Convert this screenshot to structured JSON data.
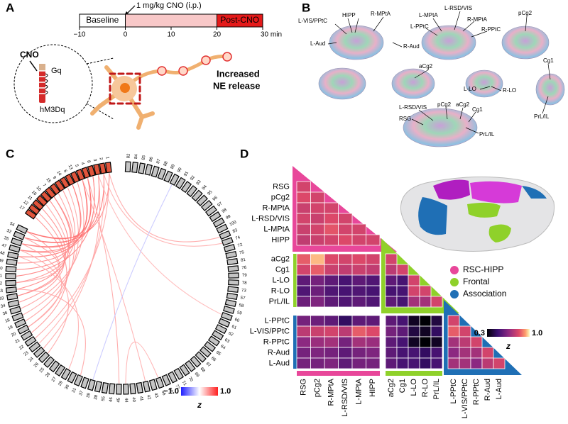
{
  "panel_a": {
    "label": "A",
    "dose": "1 mg/kg CNO (i.p.)",
    "phases": [
      "Baseline",
      "Post-CNO"
    ],
    "time_ticks": [
      {
        "value": -10,
        "label": "−10"
      },
      0,
      10,
      20,
      {
        "value": 30,
        "label": "30 min"
      }
    ],
    "drug": "CNO",
    "protein": "Gq",
    "receptor": "hM3Dq",
    "effect": [
      "Increased",
      "NE release"
    ]
  },
  "panel_b": {
    "label": "B",
    "labels": [
      "L-VIS/PPtC",
      "HIPP",
      "R-MPtA",
      "L-Aud",
      "R-Aud",
      "L-MPtA",
      "L-RSD/VIS",
      "R-MPtA",
      "L-PPtC",
      "R-PPtC",
      "pCg2",
      "aCg2",
      "Cg1",
      "L-LO",
      "R-LO",
      "PrL/IL",
      "L-RSD/VIS",
      "pCg2",
      "aCg2",
      "Cg1",
      "RSG",
      "PrL/IL"
    ]
  },
  "panel_c": {
    "label": "C",
    "red_nodes": [
      17,
      12,
      11,
      16,
      10,
      7,
      15,
      9,
      14,
      6,
      13,
      5,
      4,
      8,
      3,
      2,
      1
    ],
    "gray_nodes": [
      82,
      84,
      85,
      86,
      87,
      88,
      89,
      90,
      91,
      92,
      93,
      94,
      95,
      96,
      97,
      98,
      99,
      100,
      83,
      74,
      72,
      75,
      81,
      76,
      79,
      78,
      73,
      57,
      58,
      59,
      60,
      61,
      62,
      63,
      64,
      65,
      66,
      67,
      68,
      69,
      70,
      71,
      77,
      80,
      56,
      43,
      42,
      41,
      40,
      44,
      45,
      46,
      55,
      38,
      39,
      37,
      31,
      30,
      29,
      27,
      28,
      25,
      26,
      24,
      23,
      22,
      21,
      20,
      19,
      18,
      36,
      34,
      33,
      53,
      52,
      51,
      50,
      49,
      48,
      47,
      35,
      32,
      54
    ],
    "edges": [
      {
        "source": 1,
        "target": 54,
        "z": 0.7
      },
      {
        "source": 2,
        "target": 32,
        "z": 0.8
      },
      {
        "source": 3,
        "target": 35,
        "z": 0.75
      },
      {
        "source": 4,
        "target": 47,
        "z": 0.7
      },
      {
        "source": 5,
        "target": 48,
        "z": 0.8
      },
      {
        "source": 6,
        "target": 49,
        "z": 0.65
      },
      {
        "source": 7,
        "target": 50,
        "z": 0.7
      },
      {
        "source": 8,
        "target": 51,
        "z": 0.75
      },
      {
        "source": 9,
        "target": 52,
        "z": 0.6
      },
      {
        "source": 10,
        "target": 53,
        "z": 0.7
      },
      {
        "source": 11,
        "target": 33,
        "z": 0.65
      },
      {
        "source": 12,
        "target": 34,
        "z": 0.6
      },
      {
        "source": 13,
        "target": 36,
        "z": 0.55
      },
      {
        "source": 14,
        "target": 18,
        "z": 0.5
      },
      {
        "source": 15,
        "target": 19,
        "z": 0.55
      },
      {
        "source": 16,
        "target": 20,
        "z": 0.5
      },
      {
        "source": 17,
        "target": 21,
        "z": 0.6
      },
      {
        "source": 1,
        "target": 22,
        "z": 0.5
      },
      {
        "source": 2,
        "target": 23,
        "z": 0.45
      },
      {
        "source": 3,
        "target": 24,
        "z": 0.5
      },
      {
        "source": 4,
        "target": 54,
        "z": 0.8
      },
      {
        "source": 5,
        "target": 32,
        "z": 0.75
      },
      {
        "source": 6,
        "target": 35,
        "z": 0.7
      },
      {
        "source": 7,
        "target": 47,
        "z": 0.65
      },
      {
        "source": 8,
        "target": 48,
        "z": 0.6
      },
      {
        "source": 1,
        "target": 83,
        "z": 0.5
      },
      {
        "source": 2,
        "target": 74,
        "z": 0.45
      },
      {
        "source": 3,
        "target": 60,
        "z": 0.4
      },
      {
        "source": 4,
        "target": 45,
        "z": 0.5
      },
      {
        "source": 5,
        "target": 42,
        "z": 0.45
      },
      {
        "source": 54,
        "target": 33,
        "z": 0.6
      },
      {
        "source": 32,
        "target": 52,
        "z": 0.55
      },
      {
        "source": 35,
        "target": 20,
        "z": 0.5
      },
      {
        "source": 47,
        "target": 26,
        "z": 0.5
      },
      {
        "source": 48,
        "target": 29,
        "z": 0.45
      },
      {
        "source": 53,
        "target": 31,
        "z": 0.5
      },
      {
        "source": 56,
        "target": 44,
        "z": 0.45
      },
      {
        "source": 90,
        "target": 39,
        "z": -0.4
      }
    ],
    "colorbar": {
      "ticks": [
        {
          "value": -1,
          "label": "−1.0"
        },
        {
          "value": 1,
          "label": "1.0"
        }
      ],
      "title": "z"
    }
  },
  "panel_d": {
    "label": "D",
    "regions": [
      [
        "RSG",
        "pCg2",
        "R-MPtA",
        "L-RSD/VIS",
        "L-MPtA",
        "HIPP"
      ],
      [
        "aCg2",
        "Cg1",
        "L-LO",
        "R-LO",
        "PrL/IL"
      ],
      [
        "L-PPtC",
        "L-VIS/PPtC",
        "R-PPtC",
        "R-Aud",
        "L-Aud"
      ]
    ],
    "legend": [
      {
        "name": "RSC-HIPP",
        "color": "#e8479a"
      },
      {
        "name": "Frontal",
        "color": "#8fd12a"
      },
      {
        "name": "Association",
        "color": "#1f6fb5"
      }
    ],
    "values": [
      [
        0.8
      ],
      [
        0.82,
        0.8
      ],
      [
        0.78,
        0.8,
        0.8
      ],
      [
        0.8,
        0.78,
        0.82,
        0.8
      ],
      [
        0.78,
        0.8,
        0.84,
        0.8,
        0.8
      ],
      [
        0.76,
        0.78,
        0.8,
        0.82,
        0.8,
        0.8
      ],
      [
        0.85,
        0.95,
        0.82,
        0.8,
        0.82,
        0.8,
        0.8
      ],
      [
        0.8,
        0.85,
        0.78,
        0.76,
        0.78,
        0.76,
        0.75,
        0.8
      ],
      [
        0.55,
        0.6,
        0.55,
        0.5,
        0.55,
        0.52,
        0.55,
        0.5,
        0.8
      ],
      [
        0.52,
        0.58,
        0.52,
        0.5,
        0.52,
        0.5,
        0.5,
        0.5,
        0.8,
        0.8
      ],
      [
        0.58,
        0.62,
        0.55,
        0.52,
        0.55,
        0.52,
        0.55,
        0.5,
        0.7,
        0.7,
        0.8
      ],
      [
        0.6,
        0.58,
        0.55,
        0.45,
        0.55,
        0.55,
        0.55,
        0.5,
        0.35,
        0.3,
        0.4,
        0.8
      ],
      [
        0.75,
        0.78,
        0.8,
        0.75,
        0.85,
        0.82,
        0.6,
        0.55,
        0.4,
        0.35,
        0.45,
        0.85,
        0.8
      ],
      [
        0.65,
        0.68,
        0.7,
        0.6,
        0.7,
        0.68,
        0.55,
        0.5,
        0.35,
        0.3,
        0.35,
        0.7,
        0.75,
        0.8
      ],
      [
        0.6,
        0.62,
        0.6,
        0.55,
        0.6,
        0.62,
        0.55,
        0.5,
        0.5,
        0.45,
        0.5,
        0.65,
        0.7,
        0.7,
        0.8
      ],
      [
        0.6,
        0.6,
        0.62,
        0.55,
        0.6,
        0.6,
        0.55,
        0.5,
        0.5,
        0.45,
        0.5,
        0.7,
        0.7,
        0.65,
        0.75,
        0.8
      ]
    ],
    "colorbar": {
      "ticks": [
        0.3,
        {
          "value": 1,
          "label": "1.0"
        }
      ],
      "title": "z"
    }
  }
}
